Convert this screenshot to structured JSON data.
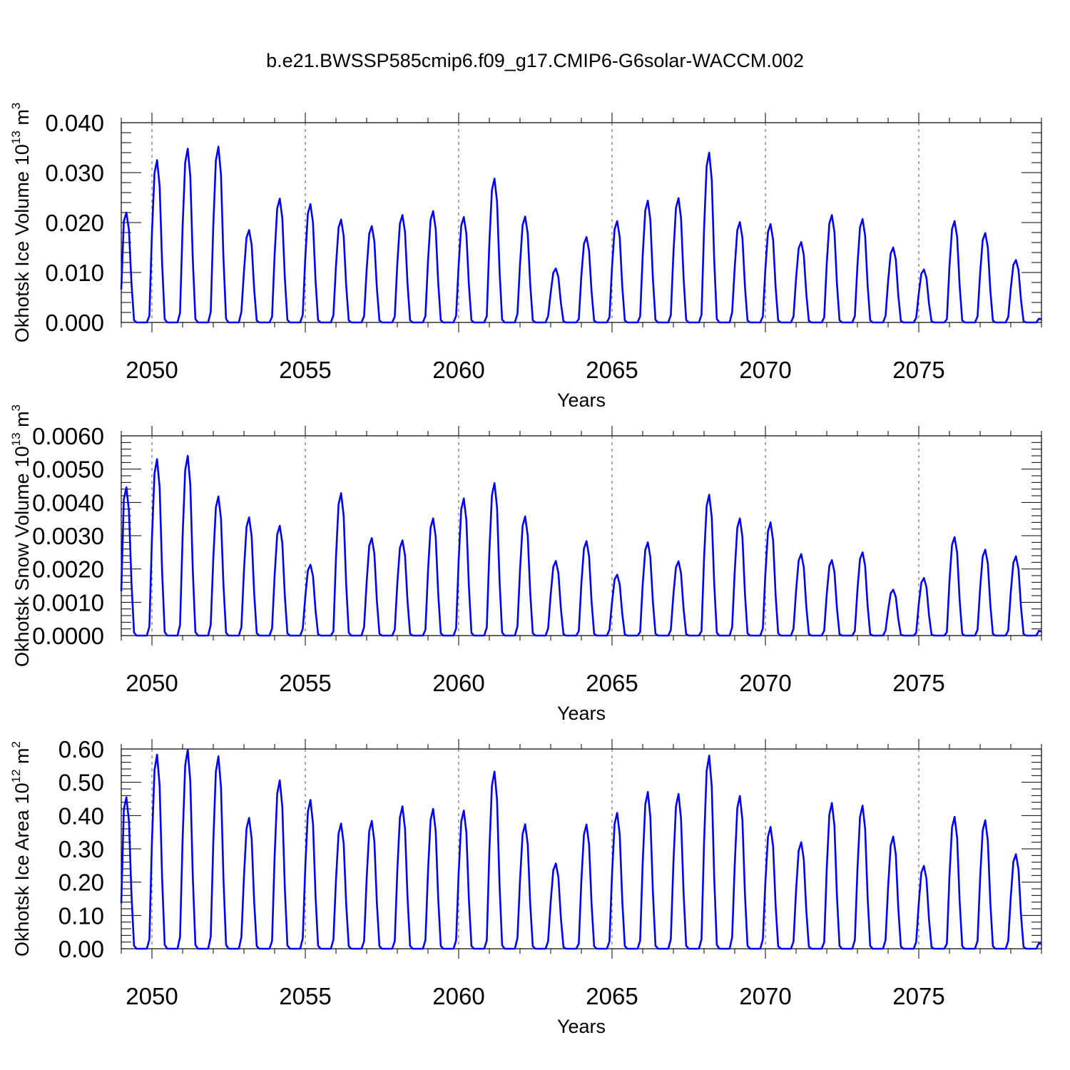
{
  "title": "b.e21.BWSSP585cmip6.f09_g17.CMIP6-G6solar-WACCM.002",
  "line_color": "#0000ff",
  "chart_data": [
    {
      "type": "line",
      "ylabel": "Okhotsk Ice Volume",
      "unit_base": "10",
      "unit_exp": "13",
      "unit_tail": " m",
      "unit_tail_exp": "3",
      "xlabel": "Years",
      "xlim": [
        2049.0,
        2079.0
      ],
      "ylim": [
        0.0,
        0.04
      ],
      "xticks": [
        "2050",
        "2055",
        "2060",
        "2065",
        "2070",
        "2075"
      ],
      "yticks": [
        "0.000",
        "0.010",
        "0.020",
        "0.030",
        "0.040"
      ],
      "peak_months": [
        2,
        3
      ],
      "peaks": [
        0.022,
        0.0325,
        0.0348,
        0.0352,
        0.0185,
        0.0248,
        0.0237,
        0.0206,
        0.0193,
        0.0215,
        0.0223,
        0.0211,
        0.0288,
        0.0212,
        0.0108,
        0.0171,
        0.0203,
        0.0244,
        0.0249,
        0.034,
        0.0201,
        0.0197,
        0.0161,
        0.0215,
        0.0207,
        0.015,
        0.0106,
        0.0203,
        0.0179,
        0.0125
      ]
    },
    {
      "type": "line",
      "ylabel": "Okhotsk Snow Volume",
      "unit_base": "10",
      "unit_exp": "13",
      "unit_tail": " m",
      "unit_tail_exp": "3",
      "xlabel": "Years",
      "xlim": [
        2049.0,
        2079.0
      ],
      "ylim": [
        0.0,
        0.006
      ],
      "xticks": [
        "2050",
        "2055",
        "2060",
        "2065",
        "2070",
        "2075"
      ],
      "yticks": [
        "0.0000",
        "0.0010",
        "0.0020",
        "0.0030",
        "0.0040",
        "0.0050",
        "0.0060"
      ],
      "peak_months": [
        2,
        3
      ],
      "peaks": [
        0.00445,
        0.0053,
        0.0054,
        0.00418,
        0.00355,
        0.0033,
        0.00213,
        0.00428,
        0.00293,
        0.00286,
        0.00352,
        0.00412,
        0.00458,
        0.00358,
        0.00224,
        0.00284,
        0.00183,
        0.0028,
        0.00223,
        0.00423,
        0.00352,
        0.0034,
        0.00245,
        0.00227,
        0.0025,
        0.00138,
        0.00173,
        0.00296,
        0.00258,
        0.00238
      ]
    },
    {
      "type": "line",
      "ylabel": "Okhotsk Ice Area",
      "unit_base": "10",
      "unit_exp": "12",
      "unit_tail": " m",
      "unit_tail_exp": "2",
      "xlabel": "Years",
      "xlim": [
        2049.0,
        2079.0
      ],
      "ylim": [
        0.0,
        0.6
      ],
      "xticks": [
        "2050",
        "2055",
        "2060",
        "2065",
        "2070",
        "2075"
      ],
      "yticks": [
        "0.00",
        "0.10",
        "0.20",
        "0.30",
        "0.40",
        "0.50",
        "0.60"
      ],
      "peak_months": [
        2,
        3
      ],
      "peaks": [
        0.455,
        0.583,
        0.598,
        0.578,
        0.393,
        0.506,
        0.447,
        0.376,
        0.384,
        0.428,
        0.42,
        0.415,
        0.532,
        0.374,
        0.256,
        0.373,
        0.408,
        0.471,
        0.465,
        0.58,
        0.459,
        0.366,
        0.32,
        0.438,
        0.43,
        0.337,
        0.249,
        0.396,
        0.386,
        0.284
      ]
    }
  ]
}
